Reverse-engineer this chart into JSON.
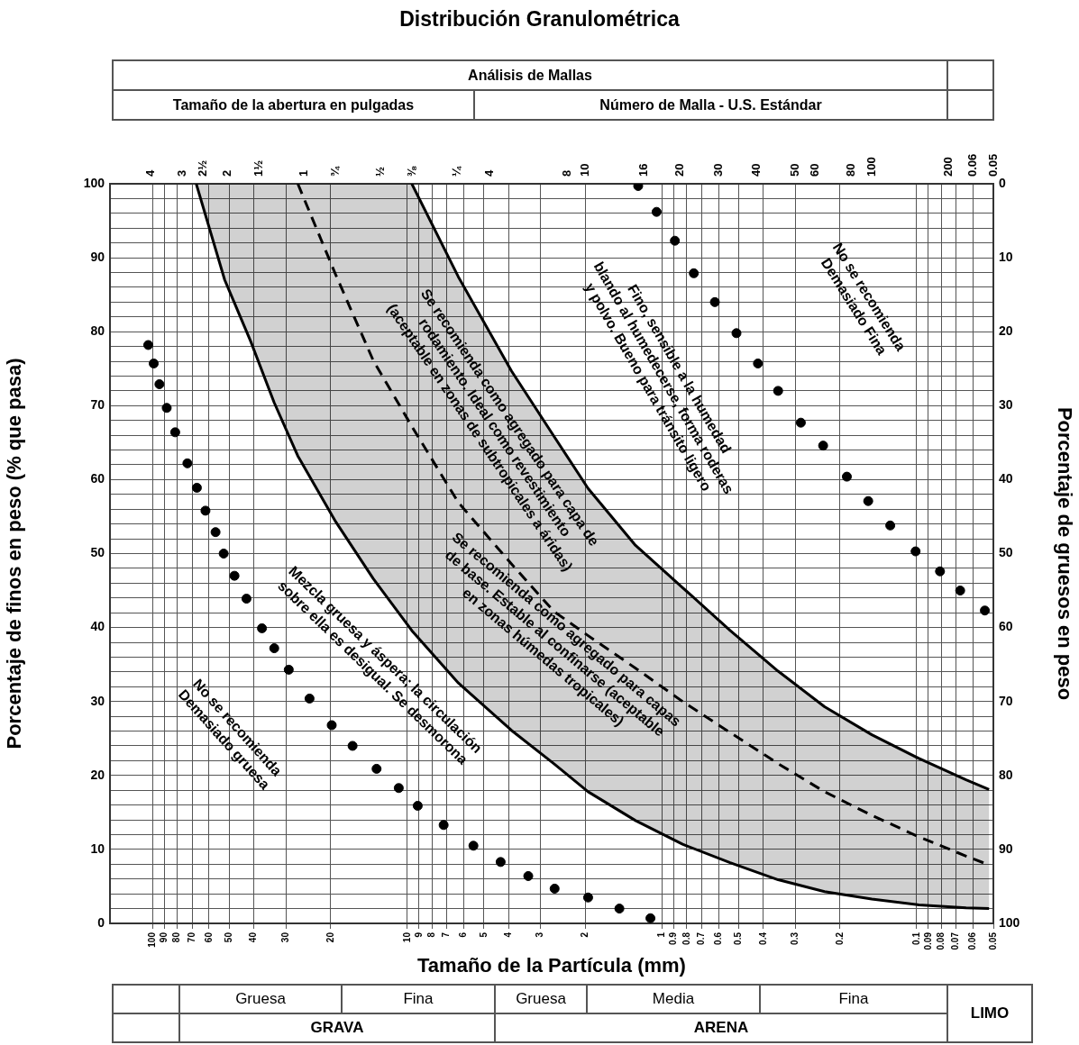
{
  "chart_data": {
    "type": "line",
    "title": "Distribución Granulométrica",
    "xlabel": "Tamaño de la Partícula (mm)",
    "ylabel": "Porcentaje de finos en peso (% que pasa)",
    "y2label": "Porcentaje de gruesos en peso",
    "annotations": [
      "Análisis de Mallas",
      "Tamaño de la abertura en pulgadas",
      "Número de Malla - U.S. Estándar",
      "Gruesa",
      "Fina",
      "Gruesa",
      "Media",
      "Fina",
      "GRAVA",
      "ARENA",
      "LIMO",
      "No se recomienda\nDemasiado gruesa",
      "Mezcla gruesa y áspera; la circulación\nsobre ella es desigual. Se desmorona",
      "Se recomienda como agregado para capas\nde base. Estable al confinarse (aceptable\nen zonas húmedas tropicales)",
      "Se recomienda como agregado para capa de\nrodamiento. Ideal como revestimiento\n(aceptable en zonas de subtropicales a áridas)",
      "Fino, sensible a la humedad\nblando al humedecerse, forma roderas\ny polvo. Bueno para tránsito ligero",
      "No se recomienda\nDemasiado Fina",
      "4",
      "3",
      "2½",
      "2",
      "1½",
      "1",
      "¾",
      "½",
      "⅜",
      "¼",
      "4",
      "8",
      "10",
      "16",
      "20",
      "30",
      "40",
      "50",
      "60",
      "80",
      "100",
      "200",
      "0.06",
      "0.05"
    ],
    "log": "x",
    "grid": true,
    "xlim": [
      147,
      0.05
    ],
    "xticks": [
      100,
      90,
      80,
      70,
      60,
      50,
      40,
      30,
      20,
      10,
      9,
      8,
      7,
      6,
      5,
      4,
      3,
      2,
      1,
      0.9,
      0.8,
      0.7,
      0.6,
      0.5,
      0.4,
      0.3,
      0.2,
      0.1,
      0.09,
      0.08,
      0.07,
      0.06,
      0.05
    ],
    "ylim": [
      0,
      100
    ],
    "yticks": [
      0,
      {
        "value": 2,
        "label": null
      },
      {
        "value": 4,
        "label": null
      },
      {
        "value": 6,
        "label": null
      },
      {
        "value": 8,
        "label": null
      },
      10,
      {
        "value": 12,
        "label": null
      },
      {
        "value": 14,
        "label": null
      },
      {
        "value": 16,
        "label": null
      },
      {
        "value": 18,
        "label": null
      },
      20,
      {
        "value": 22,
        "label": null
      },
      {
        "value": 24,
        "label": null
      },
      {
        "value": 26,
        "label": null
      },
      {
        "value": 28,
        "label": null
      },
      30,
      {
        "value": 32,
        "label": null
      },
      {
        "value": 34,
        "label": null
      },
      {
        "value": 36,
        "label": null
      },
      {
        "value": 38,
        "label": null
      },
      40,
      {
        "value": 42,
        "label": null
      },
      {
        "value": 44,
        "label": null
      },
      {
        "value": 46,
        "label": null
      },
      {
        "value": 48,
        "label": null
      },
      50,
      {
        "value": 52,
        "label": null
      },
      {
        "value": 54,
        "label": null
      },
      {
        "value": 56,
        "label": null
      },
      {
        "value": 58,
        "label": null
      },
      60,
      {
        "value": 62,
        "label": null
      },
      {
        "value": 64,
        "label": null
      },
      {
        "value": 66,
        "label": null
      },
      {
        "value": 68,
        "label": null
      },
      70,
      {
        "value": 72,
        "label": null
      },
      {
        "value": 74,
        "label": null
      },
      {
        "value": 76,
        "label": null
      },
      {
        "value": 78,
        "label": null
      },
      80,
      {
        "value": 82,
        "label": null
      },
      {
        "value": 84,
        "label": null
      },
      {
        "value": 86,
        "label": null
      },
      {
        "value": 88,
        "label": null
      },
      90,
      {
        "value": 92,
        "label": null
      },
      {
        "value": 94,
        "label": null
      },
      {
        "value": 96,
        "label": null
      },
      {
        "value": 98,
        "label": null
      },
      100
    ],
    "y2lim": [
      100,
      0
    ],
    "y2ticks": [
      0,
      10,
      20,
      30,
      40,
      50,
      60,
      70,
      80,
      90,
      100
    ],
    "series": [
      {
        "type": "scatter",
        "color": "#000000",
        "marker": "circle",
        "x": [
          104,
          99,
          94,
          88,
          81.5,
          73,
          67,
          62,
          56.6,
          52.6,
          47.7,
          42.8,
          37.2,
          33.3,
          29.2,
          24.2,
          19.8,
          16.4,
          13.2,
          10.8,
          9.1,
          7.2,
          5.5,
          4.3,
          3.35,
          2.64,
          1.95,
          1.47,
          1.11
        ],
        "values": [
          78.2,
          75.7,
          72.9,
          69.7,
          66.4,
          62.2,
          58.9,
          55.8,
          52.9,
          50.0,
          47.0,
          43.9,
          39.9,
          37.2,
          34.3,
          30.4,
          26.8,
          24.0,
          20.9,
          18.3,
          15.9,
          13.3,
          10.5,
          8.3,
          6.4,
          4.7,
          3.5,
          2.0,
          0.7
        ]
      },
      {
        "type": "scatter",
        "color": "#000000",
        "marker": "circle",
        "x": [
          1.24,
          1.05,
          0.89,
          0.75,
          0.62,
          0.51,
          0.42,
          0.35,
          0.285,
          0.233,
          0.188,
          0.155,
          0.127,
          0.101,
          0.081,
          0.0675,
          0.054
        ],
        "values": [
          99.7,
          96.2,
          92.3,
          87.9,
          84.0,
          79.8,
          75.7,
          72.0,
          67.7,
          64.6,
          60.4,
          57.1,
          53.8,
          50.3,
          47.6,
          45.0,
          42.3
        ]
      },
      {
        "type": "line",
        "color": "#000000",
        "line_style": "solid",
        "marker": "none",
        "x": [
          67.4,
          52.1,
          41.2,
          33.3,
          26.9,
          19.1,
          13.6,
          9.6,
          6.3,
          3.9,
          2.66,
          1.95,
          1.27,
          0.83,
          0.54,
          0.35,
          0.23,
          0.15,
          0.098,
          0.064,
          0.052
        ],
        "values": [
          100,
          87.0,
          78.7,
          70.4,
          63.2,
          54.3,
          46.6,
          39.6,
          32.5,
          26.1,
          21.6,
          17.8,
          13.9,
          10.7,
          8.2,
          5.9,
          4.3,
          3.3,
          2.5,
          2.1,
          2.0
        ]
      },
      {
        "type": "line",
        "color": "#000000",
        "line_style": "solid",
        "marker": "none",
        "x": [
          9.6,
          6.3,
          3.9,
          2.66,
          1.95,
          1.27,
          0.83,
          0.54,
          0.35,
          0.23,
          0.15,
          0.098,
          0.064,
          0.052
        ],
        "values": [
          100,
          87.4,
          74.7,
          65.9,
          58.8,
          51.1,
          45.4,
          39.6,
          34.1,
          29.3,
          25.5,
          22.3,
          19.4,
          18.1
        ]
      },
      {
        "type": "line",
        "color": "#000000",
        "line_style": "dashed",
        "marker": "none",
        "x": [
          67.4,
          52.1,
          41.2,
          33.3,
          26.9,
          19.1,
          13.6,
          9.6,
          6.3,
          3.9,
          2.66,
          1.95,
          1.27,
          0.83,
          0.54,
          0.35,
          0.23,
          0.15,
          0.098,
          0.064,
          0.052
        ],
        "values": [
          null,
          null,
          null,
          null,
          100,
          87.7,
          76.1,
          67.2,
          56.9,
          48.6,
          42.2,
          38.9,
          34.5,
          30.0,
          25.8,
          21.6,
          17.8,
          14.6,
          11.7,
          9.1,
          7.9
        ],
        "lower": [
          100,
          87.0,
          78.7,
          70.4,
          63.2,
          54.3,
          46.6,
          39.6,
          32.5,
          26.1,
          21.6,
          17.8,
          13.9,
          10.7,
          8.2,
          5.9,
          4.3,
          3.3,
          2.5,
          2.1,
          2.0
        ],
        "upper": [
          100,
          100,
          100,
          100,
          100,
          100,
          100,
          100,
          87.4,
          74.7,
          65.9,
          58.8,
          51.1,
          45.4,
          39.6,
          34.1,
          29.3,
          25.5,
          22.3,
          19.4,
          18.1
        ]
      }
    ]
  }
}
